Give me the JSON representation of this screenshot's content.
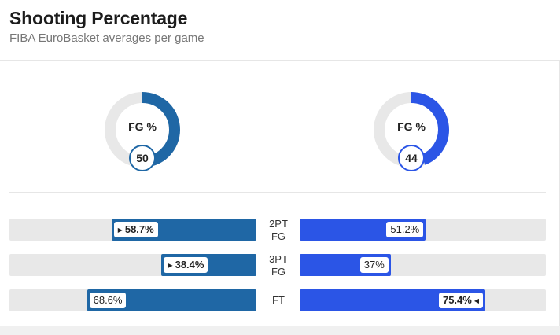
{
  "header": {
    "title": "Shooting Percentage",
    "subtitle": "FIBA EuroBasket averages per game"
  },
  "colors": {
    "team_left": "#1f67a5",
    "team_right": "#2b55e6",
    "track": "#e8e8e8"
  },
  "donuts": {
    "left": {
      "label": "FG %",
      "value": "50",
      "percent": 50
    },
    "right": {
      "label": "FG %",
      "value": "44",
      "percent": 44
    }
  },
  "rows": [
    {
      "label_line1": "2PT",
      "label_line2": "FG",
      "left": "58.7%",
      "left_pct": 58.7,
      "right": "51.2%",
      "right_pct": 51.2,
      "leader": "left"
    },
    {
      "label_line1": "3PT",
      "label_line2": "FG",
      "left": "38.4%",
      "left_pct": 38.4,
      "right": "37%",
      "right_pct": 37,
      "leader": "left"
    },
    {
      "label_line1": "FT",
      "label_line2": "",
      "left": "68.6%",
      "left_pct": 68.6,
      "right": "75.4%",
      "right_pct": 75.4,
      "leader": "right"
    }
  ]
}
